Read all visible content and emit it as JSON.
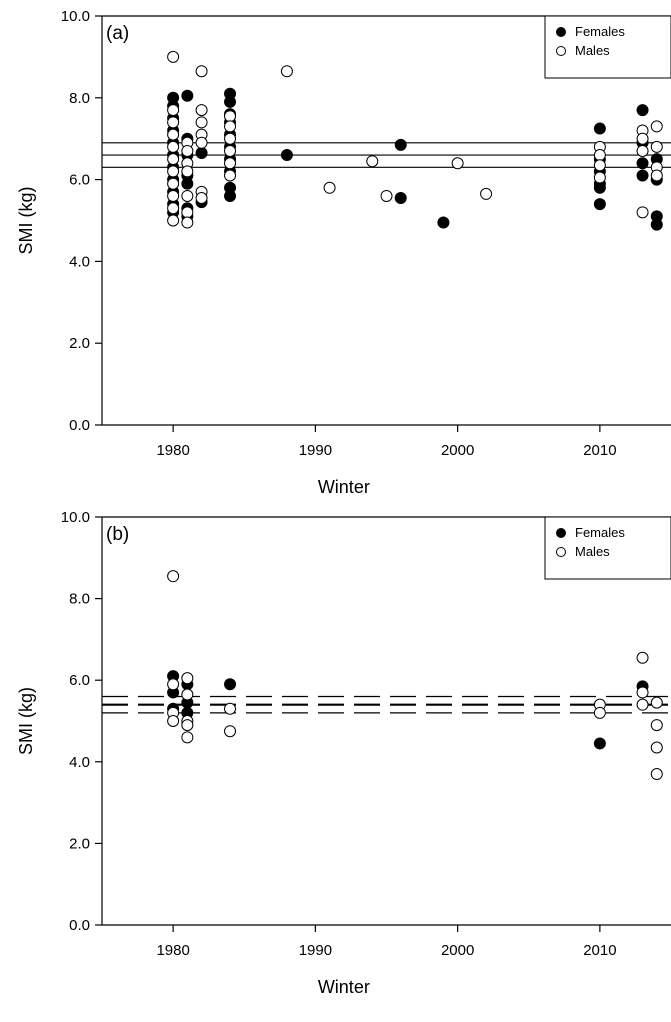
{
  "chart_data": [
    {
      "type": "scatter",
      "panel_label": "(a)",
      "xlabel": "Winter",
      "ylabel": "SMI (kg)",
      "xlim": [
        1975,
        2015
      ],
      "ylim": [
        0,
        10
      ],
      "xticks": [
        1980,
        1990,
        2000,
        2010
      ],
      "yticks": [
        0,
        2,
        4,
        6,
        8,
        10
      ],
      "ytick_labels": [
        "0.0",
        "2.0",
        "4.0",
        "6.0",
        "8.0",
        "10.0"
      ],
      "legend": {
        "position": "top-right",
        "entries": [
          "Females",
          "Males"
        ]
      },
      "series": [
        {
          "name": "Females",
          "marker": "filled-circle",
          "points": [
            [
              1980,
              8.0
            ],
            [
              1980,
              7.8
            ],
            [
              1980,
              7.5
            ],
            [
              1980,
              7.2
            ],
            [
              1980,
              6.9
            ],
            [
              1980,
              6.6
            ],
            [
              1980,
              6.3
            ],
            [
              1980,
              6.0
            ],
            [
              1980,
              5.7
            ],
            [
              1980,
              5.4
            ],
            [
              1980,
              5.2
            ],
            [
              1981,
              8.05
            ],
            [
              1981,
              7.0
            ],
            [
              1981,
              6.6
            ],
            [
              1981,
              6.1
            ],
            [
              1981,
              5.9
            ],
            [
              1981,
              5.3
            ],
            [
              1981,
              5.1
            ],
            [
              1982,
              6.65
            ],
            [
              1982,
              5.45
            ],
            [
              1984,
              8.1
            ],
            [
              1984,
              7.9
            ],
            [
              1984,
              7.6
            ],
            [
              1984,
              7.4
            ],
            [
              1984,
              7.1
            ],
            [
              1984,
              6.8
            ],
            [
              1984,
              6.5
            ],
            [
              1984,
              6.2
            ],
            [
              1984,
              5.8
            ],
            [
              1984,
              5.6
            ],
            [
              1988,
              6.6
            ],
            [
              1996,
              6.85
            ],
            [
              1996,
              5.55
            ],
            [
              1999,
              4.95
            ],
            [
              2010,
              7.25
            ],
            [
              2010,
              6.5
            ],
            [
              2010,
              6.2
            ],
            [
              2010,
              5.9
            ],
            [
              2010,
              5.8
            ],
            [
              2010,
              5.4
            ],
            [
              2013,
              7.7
            ],
            [
              2013,
              6.9
            ],
            [
              2013,
              6.4
            ],
            [
              2013,
              6.1
            ],
            [
              2014,
              6.5
            ],
            [
              2014,
              6.0
            ],
            [
              2014,
              5.1
            ],
            [
              2014,
              4.9
            ]
          ]
        },
        {
          "name": "Males",
          "marker": "open-circle",
          "points": [
            [
              1980,
              9.0
            ],
            [
              1980,
              7.7
            ],
            [
              1980,
              7.4
            ],
            [
              1980,
              7.1
            ],
            [
              1980,
              6.8
            ],
            [
              1980,
              6.5
            ],
            [
              1980,
              6.2
            ],
            [
              1980,
              5.9
            ],
            [
              1980,
              5.6
            ],
            [
              1980,
              5.3
            ],
            [
              1980,
              5.0
            ],
            [
              1981,
              6.9
            ],
            [
              1981,
              6.7
            ],
            [
              1981,
              6.4
            ],
            [
              1981,
              6.2
            ],
            [
              1981,
              5.6
            ],
            [
              1981,
              5.2
            ],
            [
              1981,
              4.95
            ],
            [
              1982,
              8.65
            ],
            [
              1982,
              7.7
            ],
            [
              1982,
              7.4
            ],
            [
              1982,
              7.1
            ],
            [
              1982,
              6.9
            ],
            [
              1982,
              5.7
            ],
            [
              1982,
              5.55
            ],
            [
              1984,
              7.55
            ],
            [
              1984,
              7.3
            ],
            [
              1984,
              7.0
            ],
            [
              1984,
              6.7
            ],
            [
              1984,
              6.4
            ],
            [
              1984,
              6.1
            ],
            [
              1988,
              8.65
            ],
            [
              1991,
              5.8
            ],
            [
              1994,
              6.45
            ],
            [
              1995,
              5.6
            ],
            [
              2000,
              6.4
            ],
            [
              2002,
              5.65
            ],
            [
              2010,
              6.8
            ],
            [
              2010,
              6.6
            ],
            [
              2010,
              6.35
            ],
            [
              2010,
              6.05
            ],
            [
              2013,
              7.2
            ],
            [
              2013,
              7.0
            ],
            [
              2013,
              6.7
            ],
            [
              2013,
              5.2
            ],
            [
              2014,
              7.3
            ],
            [
              2014,
              6.8
            ],
            [
              2014,
              6.3
            ],
            [
              2014,
              6.1
            ]
          ]
        }
      ],
      "reference_lines": [
        {
          "y": 6.9,
          "style": "solid"
        },
        {
          "y": 6.6,
          "style": "solid"
        },
        {
          "y": 6.3,
          "style": "solid"
        }
      ]
    },
    {
      "type": "scatter",
      "panel_label": "(b)",
      "xlabel": "Winter",
      "ylabel": "SMI (kg)",
      "xlim": [
        1975,
        2015
      ],
      "ylim": [
        0,
        10
      ],
      "xticks": [
        1980,
        1990,
        2000,
        2010
      ],
      "yticks": [
        0,
        2,
        4,
        6,
        8,
        10
      ],
      "ytick_labels": [
        "0.0",
        "2.0",
        "4.0",
        "6.0",
        "8.0",
        "10.0"
      ],
      "legend": {
        "position": "top-right",
        "entries": [
          "Females",
          "Males"
        ]
      },
      "series": [
        {
          "name": "Females",
          "marker": "filled-circle",
          "points": [
            [
              1980,
              6.1
            ],
            [
              1980,
              5.7
            ],
            [
              1980,
              5.3
            ],
            [
              1981,
              5.9
            ],
            [
              1981,
              5.45
            ],
            [
              1981,
              5.2
            ],
            [
              1984,
              5.9
            ],
            [
              2010,
              4.45
            ],
            [
              2013,
              5.85
            ]
          ]
        },
        {
          "name": "Males",
          "marker": "open-circle",
          "points": [
            [
              1980,
              8.55
            ],
            [
              1980,
              5.9
            ],
            [
              1980,
              5.2
            ],
            [
              1980,
              5.0
            ],
            [
              1981,
              6.05
            ],
            [
              1981,
              5.65
            ],
            [
              1981,
              5.0
            ],
            [
              1981,
              4.9
            ],
            [
              1981,
              4.6
            ],
            [
              1984,
              5.3
            ],
            [
              1984,
              4.75
            ],
            [
              2010,
              5.4
            ],
            [
              2010,
              5.2
            ],
            [
              2013,
              6.55
            ],
            [
              2013,
              5.7
            ],
            [
              2013,
              5.4
            ],
            [
              2014,
              5.45
            ],
            [
              2014,
              4.9
            ],
            [
              2014,
              4.35
            ],
            [
              2014,
              3.7
            ]
          ]
        }
      ],
      "reference_lines": [
        {
          "y": 5.6,
          "style": "dashed"
        },
        {
          "y": 5.4,
          "style": "dashed-heavy"
        },
        {
          "y": 5.2,
          "style": "dashed"
        }
      ]
    }
  ]
}
